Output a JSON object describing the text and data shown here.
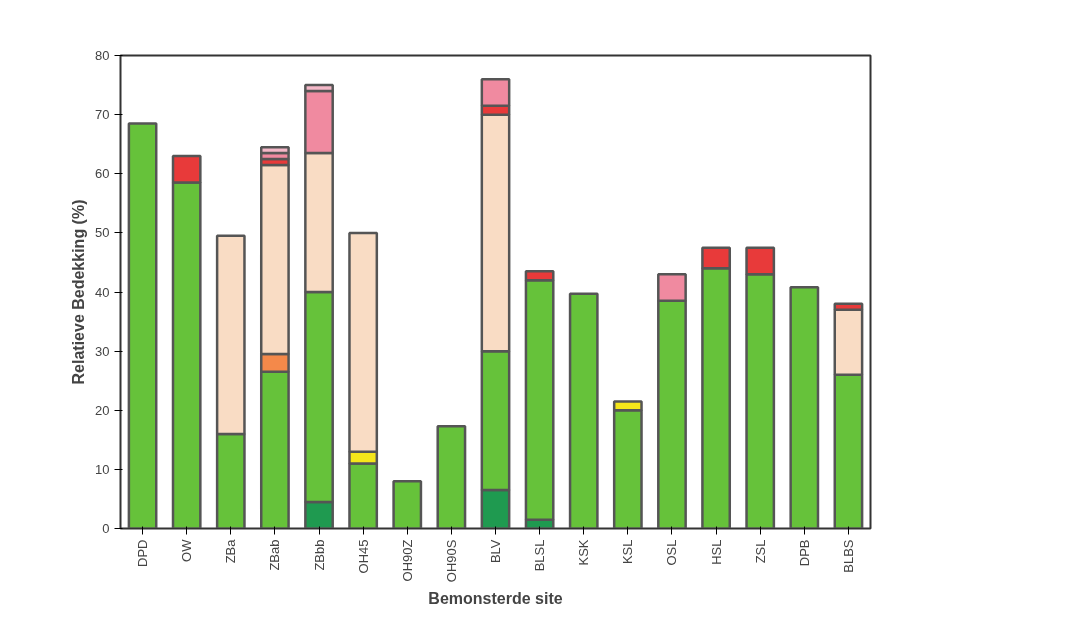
{
  "chart_data": {
    "type": "bar",
    "stacked": true,
    "xlabel": "Bemonsterde site",
    "ylabel": "Relatieve Bedekking (%)",
    "categories": [
      "DPD",
      "OW",
      "ZBa",
      "ZBab",
      "ZBbb",
      "OH45",
      "OH90Z",
      "OH90S",
      "BLV",
      "BLSL",
      "KSK",
      "KSL",
      "OSL",
      "HSL",
      "ZSL",
      "DPB",
      "BLBS"
    ],
    "series": [
      {
        "color": "#1f9a50",
        "values": [
          0,
          0,
          0,
          0,
          4.5,
          0,
          0,
          0,
          6.5,
          1.5,
          0,
          0,
          0,
          0,
          0,
          0,
          0
        ]
      },
      {
        "color": "#66c23a",
        "values": [
          68.5,
          58.5,
          16,
          26.5,
          35.5,
          11,
          8,
          17.3,
          23.5,
          40.5,
          39.7,
          20,
          38.5,
          44,
          43,
          40.8,
          26
        ]
      },
      {
        "color": "#f4894a",
        "values": [
          0,
          0,
          0,
          3,
          0,
          0,
          0,
          0,
          0,
          0,
          0,
          0,
          0,
          0,
          0,
          0,
          0
        ]
      },
      {
        "color": "#f5e61a",
        "values": [
          0,
          0,
          0,
          0,
          0,
          2,
          0,
          0,
          0,
          0,
          0,
          1.5,
          0,
          0,
          0,
          0,
          0
        ]
      },
      {
        "color": "#f9dcc4",
        "values": [
          0,
          0,
          33.5,
          32,
          23.5,
          37,
          0,
          0,
          40,
          0,
          0,
          0,
          0,
          0,
          0,
          0,
          11
        ]
      },
      {
        "color": "#e83a3a",
        "values": [
          0,
          4.5,
          0,
          1,
          0,
          0,
          0,
          0,
          1.5,
          1.5,
          0,
          0,
          0,
          3.5,
          4.5,
          0,
          1
        ]
      },
      {
        "color": "#f08aa0",
        "values": [
          0,
          0,
          0,
          1,
          10.5,
          0,
          0,
          0,
          4.5,
          0,
          0,
          0,
          4.5,
          0,
          0,
          0,
          0
        ]
      },
      {
        "color": "#f4b8c8",
        "values": [
          0,
          0,
          0,
          1,
          1,
          0,
          0,
          0,
          0,
          0,
          0,
          0,
          0,
          0,
          0,
          0,
          0
        ]
      }
    ],
    "ylim": [
      0,
      80
    ],
    "yticks": [
      0,
      10,
      20,
      30,
      40,
      50,
      60,
      70,
      80
    ],
    "grid": false
  }
}
